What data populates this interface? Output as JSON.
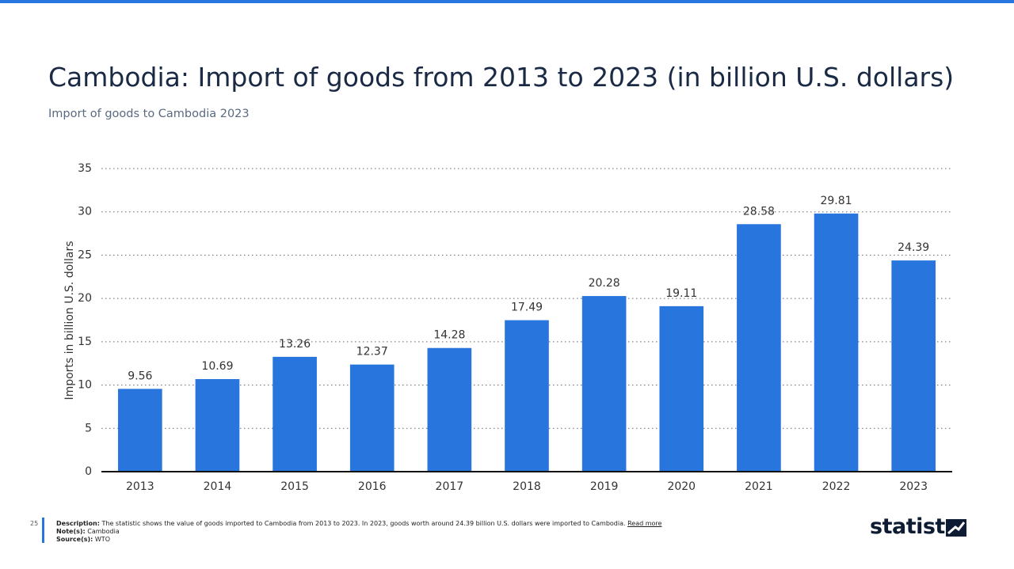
{
  "chart_data": {
    "type": "bar",
    "title": "Cambodia: Import of goods from 2013 to 2023 (in billion U.S. dollars)",
    "subtitle": "Import of goods to Cambodia 2023",
    "y_label": "Imports in billion U.S. dollars",
    "categories": [
      "2013",
      "2014",
      "2015",
      "2016",
      "2017",
      "2018",
      "2019",
      "2020",
      "2021",
      "2022",
      "2023"
    ],
    "values": [
      9.56,
      10.69,
      13.26,
      12.37,
      14.28,
      17.49,
      20.28,
      19.11,
      28.58,
      29.81,
      24.39
    ],
    "color": "#2876dd",
    "ylim": [
      0,
      35
    ],
    "yticks": [
      0,
      5,
      10,
      15,
      20,
      25,
      30,
      35
    ],
    "grid": true
  },
  "footer": {
    "page": "25",
    "description_label": "Description:",
    "description": "The statistic shows the value of goods imported to Cambodia from 2013 to 2023. In 2023, goods worth around 24.39 billion U.S. dollars were imported to Cambodia.",
    "read_more": "Read more",
    "notes_label": "Note(s):",
    "notes": "Cambodia",
    "sources_label": "Source(s):",
    "sources": "WTO",
    "logo": "statista"
  }
}
